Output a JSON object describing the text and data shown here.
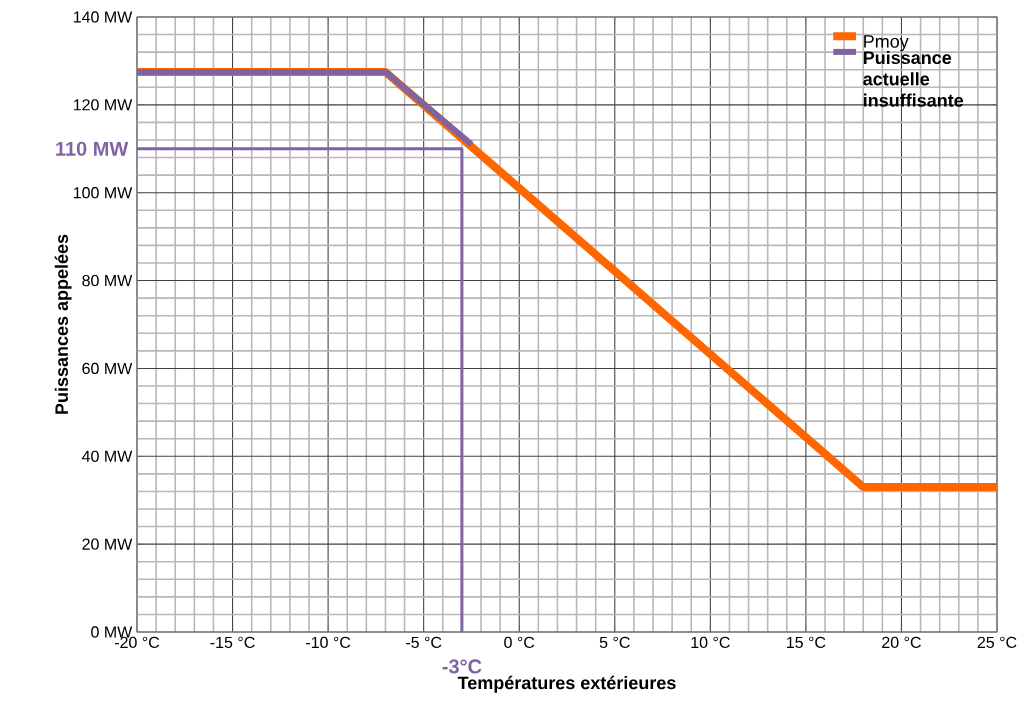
{
  "chart_data": {
    "type": "line",
    "xlabel": "Températures extérieures",
    "ylabel": "Puissances appelées",
    "xlim": [
      -20,
      25
    ],
    "ylim": [
      0,
      140
    ],
    "xticks": [
      {
        "value": -20,
        "label": "-20 °C"
      },
      {
        "value": -15,
        "label": "-15 °C"
      },
      {
        "value": -10,
        "label": "-10 °C"
      },
      {
        "value": -5,
        "label": "-5 °C"
      },
      {
        "value": 0,
        "label": "0 °C"
      },
      {
        "value": 5,
        "label": "5 °C"
      },
      {
        "value": 10,
        "label": "10 °C"
      },
      {
        "value": 15,
        "label": "15 °C"
      },
      {
        "value": 20,
        "label": "20 °C"
      },
      {
        "value": 25,
        "label": "25 °C"
      }
    ],
    "yticks": [
      {
        "value": 0,
        "label": "0 MW"
      },
      {
        "value": 20,
        "label": "20 MW"
      },
      {
        "value": 40,
        "label": "40 MW"
      },
      {
        "value": 60,
        "label": "60 MW"
      },
      {
        "value": 80,
        "label": "80 MW"
      },
      {
        "value": 100,
        "label": "100 MW"
      },
      {
        "value": 120,
        "label": "120 MW"
      },
      {
        "value": 140,
        "label": "140 MW"
      }
    ],
    "grid": true,
    "legend": "top right",
    "series": [
      {
        "name": "Pmoy",
        "color": "#ff6600",
        "x": [
          -20,
          -7,
          18,
          25
        ],
        "values": [
          127.5,
          127.5,
          33,
          33
        ]
      },
      {
        "name": "Puissance actuelle insuffisante",
        "color": "#8064a2",
        "x": [
          -20,
          -7,
          -2.5
        ],
        "values": [
          127.5,
          127.5,
          111
        ]
      },
      {
        "color": "#8064a2",
        "x": [
          -20,
          -3,
          -3
        ],
        "values": [
          110,
          110,
          0
        ]
      }
    ],
    "annotations": [
      {
        "text": "110 MW",
        "x": -20,
        "y": 110
      },
      {
        "text": "-3°C",
        "x": -3,
        "y": 0
      }
    ]
  }
}
